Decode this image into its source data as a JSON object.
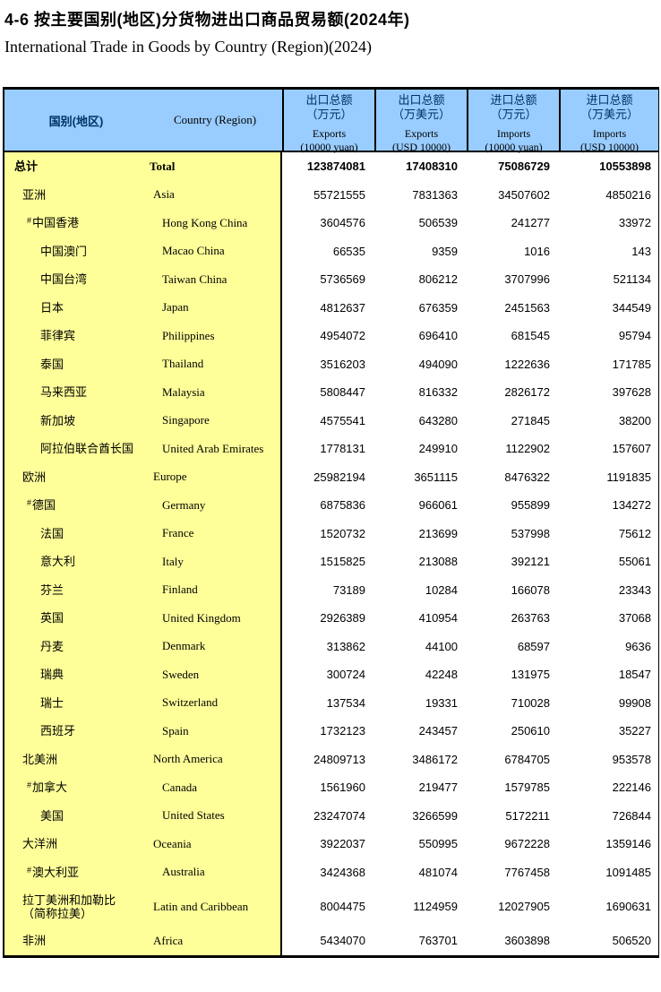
{
  "title": {
    "zh": "4-6 按主要国别(地区)分货物进出口商品贸易额(2024年)",
    "en": "International Trade in Goods by Country (Region)(2024)"
  },
  "colors": {
    "header_bg": "#99CCFF",
    "header_text": "#003366",
    "name_bg": "#FFFF99",
    "border": "#000000"
  },
  "table": {
    "country_header": {
      "zh": "国别(地区)",
      "en": "Country (Region)"
    },
    "of_which_marker": "#",
    "columns": [
      {
        "zh": "出口总额",
        "unit_zh": "（万元）",
        "en": "Exports",
        "unit_en": "(10000 yuan)"
      },
      {
        "zh": "出口总额",
        "unit_zh": "（万美元）",
        "en": "Exports",
        "unit_en": "(USD 10000)"
      },
      {
        "zh": "进口总额",
        "unit_zh": "（万元）",
        "en": "Imports",
        "unit_en": "(10000 yuan)"
      },
      {
        "zh": "进口总额",
        "unit_zh": "（万美元）",
        "en": "Imports",
        "unit_en": "(USD 10000)"
      }
    ],
    "rows": [
      {
        "zh": "总计",
        "en": "Total",
        "level": "total",
        "bold": true,
        "sharp": false,
        "values": [
          "123874081",
          "17408310",
          "75086729",
          "10553898"
        ]
      },
      {
        "zh": "亚洲",
        "en": "Asia",
        "level": "continent",
        "sharp": false,
        "values": [
          "55721555",
          "7831363",
          "34507602",
          "4850216"
        ]
      },
      {
        "zh": "中国香港",
        "en": "Hong Kong China",
        "level": "sub",
        "sharp": true,
        "values": [
          "3604576",
          "506539",
          "241277",
          "33972"
        ]
      },
      {
        "zh": "中国澳门",
        "en": "Macao China",
        "level": "country",
        "sharp": false,
        "values": [
          "66535",
          "9359",
          "1016",
          "143"
        ]
      },
      {
        "zh": "中国台湾",
        "en": "Taiwan China",
        "level": "country",
        "sharp": false,
        "values": [
          "5736569",
          "806212",
          "3707996",
          "521134"
        ]
      },
      {
        "zh": "日本",
        "en": "Japan",
        "level": "country",
        "sharp": false,
        "values": [
          "4812637",
          "676359",
          "2451563",
          "344549"
        ]
      },
      {
        "zh": "菲律宾",
        "en": "Philippines",
        "level": "country",
        "sharp": false,
        "values": [
          "4954072",
          "696410",
          "681545",
          "95794"
        ]
      },
      {
        "zh": "泰国",
        "en": "Thailand",
        "level": "country",
        "sharp": false,
        "values": [
          "3516203",
          "494090",
          "1222636",
          "171785"
        ]
      },
      {
        "zh": "马来西亚",
        "en": "Malaysia",
        "level": "country",
        "sharp": false,
        "values": [
          "5808447",
          "816332",
          "2826172",
          "397628"
        ]
      },
      {
        "zh": "新加坡",
        "en": "Singapore",
        "level": "country",
        "sharp": false,
        "values": [
          "4575541",
          "643280",
          "271845",
          "38200"
        ]
      },
      {
        "zh": "阿拉伯联合酋长国",
        "en": "United Arab Emirates",
        "level": "country",
        "sharp": false,
        "values": [
          "1778131",
          "249910",
          "1122902",
          "157607"
        ]
      },
      {
        "zh": "欧洲",
        "en": "Europe",
        "level": "continent",
        "sharp": false,
        "values": [
          "25982194",
          "3651115",
          "8476322",
          "1191835"
        ]
      },
      {
        "zh": "德国",
        "en": "Germany",
        "level": "sub",
        "sharp": true,
        "values": [
          "6875836",
          "966061",
          "955899",
          "134272"
        ]
      },
      {
        "zh": "法国",
        "en": "France",
        "level": "country",
        "sharp": false,
        "values": [
          "1520732",
          "213699",
          "537998",
          "75612"
        ]
      },
      {
        "zh": "意大利",
        "en": "Italy",
        "level": "country",
        "sharp": false,
        "values": [
          "1515825",
          "213088",
          "392121",
          "55061"
        ]
      },
      {
        "zh": "芬兰",
        "en": "Finland",
        "level": "country",
        "sharp": false,
        "values": [
          "73189",
          "10284",
          "166078",
          "23343"
        ]
      },
      {
        "zh": "英国",
        "en": "United Kingdom",
        "level": "country",
        "sharp": false,
        "values": [
          "2926389",
          "410954",
          "263763",
          "37068"
        ]
      },
      {
        "zh": "丹麦",
        "en": "Denmark",
        "level": "country",
        "sharp": false,
        "values": [
          "313862",
          "44100",
          "68597",
          "9636"
        ]
      },
      {
        "zh": "瑞典",
        "en": "Sweden",
        "level": "country",
        "sharp": false,
        "values": [
          "300724",
          "42248",
          "131975",
          "18547"
        ]
      },
      {
        "zh": "瑞士",
        "en": "Switzerland",
        "level": "country",
        "sharp": false,
        "values": [
          "137534",
          "19331",
          "710028",
          "99908"
        ]
      },
      {
        "zh": "西班牙",
        "en": "Spain",
        "level": "country",
        "sharp": false,
        "values": [
          "1732123",
          "243457",
          "250610",
          "35227"
        ]
      },
      {
        "zh": "北美洲",
        "en": "North America",
        "level": "continent",
        "sharp": false,
        "values": [
          "24809713",
          "3486172",
          "6784705",
          "953578"
        ]
      },
      {
        "zh": "加拿大",
        "en": "Canada",
        "level": "sub",
        "sharp": true,
        "values": [
          "1561960",
          "219477",
          "1579785",
          "222146"
        ]
      },
      {
        "zh": "美国",
        "en": "United States",
        "level": "country",
        "sharp": false,
        "values": [
          "23247074",
          "3266599",
          "5172211",
          "726844"
        ]
      },
      {
        "zh": "大洋洲",
        "en": "Oceania",
        "level": "continent",
        "sharp": false,
        "values": [
          "3922037",
          "550995",
          "9672228",
          "1359146"
        ]
      },
      {
        "zh": "澳大利亚",
        "en": "Australia",
        "level": "sub",
        "sharp": true,
        "values": [
          "3424368",
          "481074",
          "7767458",
          "1091485"
        ]
      },
      {
        "zh": "拉丁美洲和加勒比",
        "zh2": "（简称拉美）",
        "en": "Latin and Caribbean",
        "level": "continent",
        "tall": true,
        "sharp": false,
        "values": [
          "8004475",
          "1124959",
          "12027905",
          "1690631"
        ]
      },
      {
        "zh": "非洲",
        "en": "Africa",
        "level": "continent",
        "sharp": false,
        "values": [
          "5434070",
          "763701",
          "3603898",
          "506520"
        ]
      }
    ]
  }
}
